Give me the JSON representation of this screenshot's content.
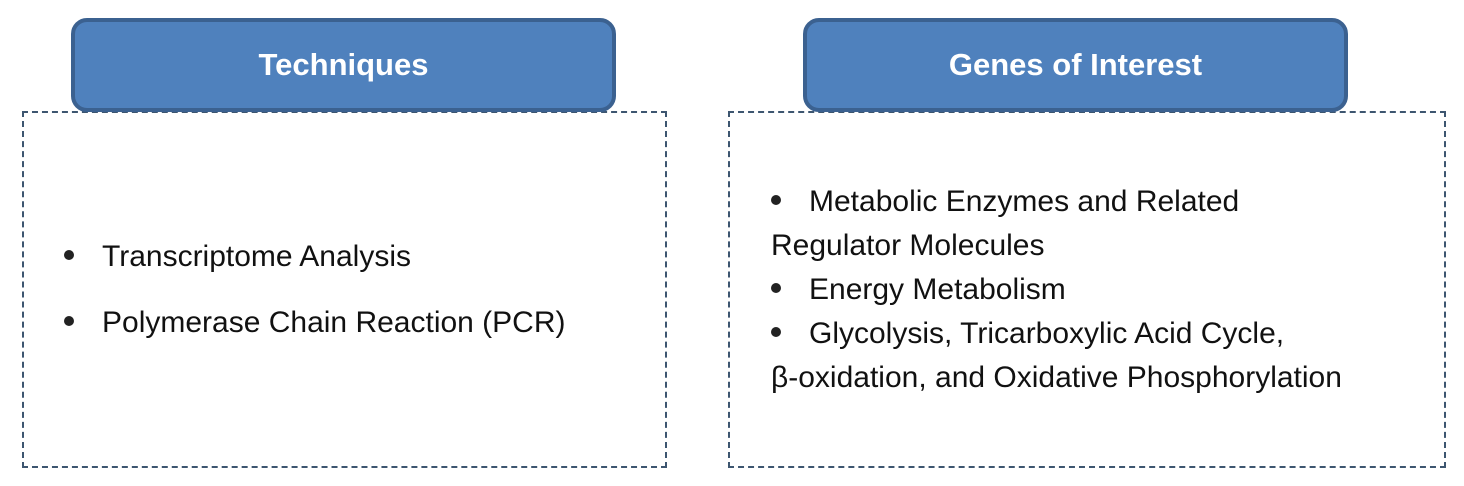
{
  "colors": {
    "header_fill": "#4f81bd",
    "header_border": "#3b6190",
    "dashed_border": "#3d5670"
  },
  "techniques": {
    "title": "Techniques",
    "items": [
      "Transcriptome Analysis",
      "Polymerase Chain Reaction (PCR)"
    ]
  },
  "genes": {
    "title": "Genes of Interest",
    "items": [
      {
        "line1": "Metabolic Enzymes and Related",
        "line2": "Regulator Molecules"
      },
      {
        "line1": "Energy Metabolism"
      },
      {
        "line1": "Glycolysis, Tricarboxylic Acid Cycle,",
        "line2": "β-oxidation, and Oxidative Phosphorylation"
      }
    ]
  }
}
